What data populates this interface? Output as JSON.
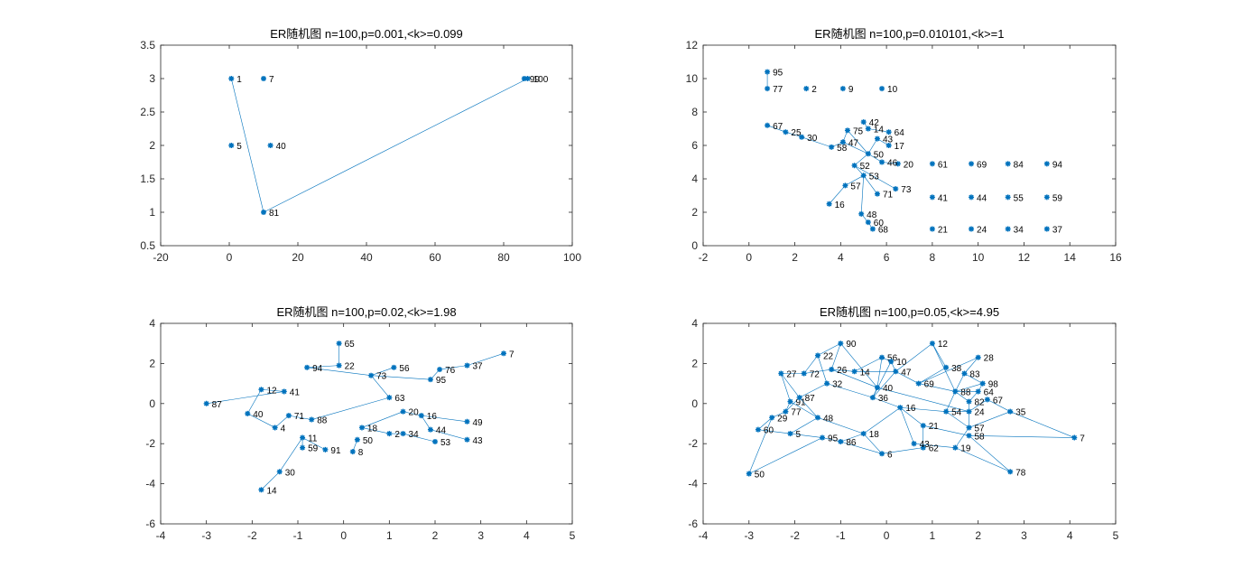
{
  "figure": {
    "background": "#ffffff",
    "marker_color": "#0072BD",
    "axis_color": "#262626"
  },
  "chart_data": [
    {
      "id": "p1",
      "type": "scatter",
      "title": "ER随机图 n=100,p=0.001,<k>=0.099",
      "xlim": [
        -20,
        100
      ],
      "ylim": [
        0.5,
        3.5
      ],
      "xticks": [
        -20,
        0,
        20,
        40,
        60,
        80,
        100
      ],
      "yticks": [
        0.5,
        1,
        1.5,
        2,
        2.5,
        3,
        3.5
      ],
      "points": [
        {
          "label": "81",
          "x": 10,
          "y": 1
        },
        {
          "label": "1",
          "x": 0.6,
          "y": 3
        },
        {
          "label": "7",
          "x": 10,
          "y": 3
        },
        {
          "label": "99",
          "x": 86,
          "y": 3
        },
        {
          "label": "100",
          "x": 87,
          "y": 3
        },
        {
          "label": "5",
          "x": 0.6,
          "y": 2
        },
        {
          "label": "40",
          "x": 12,
          "y": 2
        }
      ],
      "edges": [
        [
          0,
          1
        ],
        [
          0,
          4
        ]
      ]
    },
    {
      "id": "p2",
      "type": "scatter",
      "title": "ER随机图 n=100,p=0.010101,<k>=1",
      "xlim": [
        -2,
        16
      ],
      "ylim": [
        0,
        12
      ],
      "xticks": [
        -2,
        0,
        2,
        4,
        6,
        8,
        10,
        12,
        14,
        16
      ],
      "yticks": [
        0,
        2,
        4,
        6,
        8,
        10,
        12
      ],
      "points": [
        {
          "label": "95",
          "x": 0.8,
          "y": 10.4
        },
        {
          "label": "77",
          "x": 0.8,
          "y": 9.4
        },
        {
          "label": "2",
          "x": 2.5,
          "y": 9.4
        },
        {
          "label": "9",
          "x": 4.1,
          "y": 9.4
        },
        {
          "label": "10",
          "x": 5.8,
          "y": 9.4
        },
        {
          "label": "42",
          "x": 5.0,
          "y": 7.4
        },
        {
          "label": "14",
          "x": 5.2,
          "y": 7.0
        },
        {
          "label": "64",
          "x": 6.1,
          "y": 6.8
        },
        {
          "label": "75",
          "x": 4.3,
          "y": 6.9
        },
        {
          "label": "67",
          "x": 0.8,
          "y": 7.2
        },
        {
          "label": "25",
          "x": 1.6,
          "y": 6.8
        },
        {
          "label": "30",
          "x": 2.3,
          "y": 6.5
        },
        {
          "label": "17",
          "x": 6.1,
          "y": 6.0
        },
        {
          "label": "61",
          "x": 8.0,
          "y": 4.9
        },
        {
          "label": "69",
          "x": 9.7,
          "y": 4.9
        },
        {
          "label": "84",
          "x": 11.3,
          "y": 4.9
        },
        {
          "label": "94",
          "x": 13.0,
          "y": 4.9
        },
        {
          "label": "20",
          "x": 6.5,
          "y": 4.9
        },
        {
          "label": "73",
          "x": 6.4,
          "y": 3.4
        },
        {
          "label": "71",
          "x": 5.6,
          "y": 3.1
        },
        {
          "label": "16",
          "x": 3.5,
          "y": 2.5
        },
        {
          "label": "48",
          "x": 4.9,
          "y": 1.9
        },
        {
          "label": "60",
          "x": 5.2,
          "y": 1.4
        },
        {
          "label": "68",
          "x": 5.4,
          "y": 1.0
        },
        {
          "label": "41",
          "x": 8.0,
          "y": 2.9
        },
        {
          "label": "44",
          "x": 9.7,
          "y": 2.9
        },
        {
          "label": "55",
          "x": 11.3,
          "y": 2.9
        },
        {
          "label": "59",
          "x": 13.0,
          "y": 2.9
        },
        {
          "label": "21",
          "x": 8.0,
          "y": 1.0
        },
        {
          "label": "24",
          "x": 9.7,
          "y": 1.0
        },
        {
          "label": "34",
          "x": 11.3,
          "y": 1.0
        },
        {
          "label": "37",
          "x": 13.0,
          "y": 1.0
        },
        {
          "label": "50",
          "x": 5.2,
          "y": 5.5
        },
        {
          "label": "52",
          "x": 4.6,
          "y": 4.8
        },
        {
          "label": "53",
          "x": 5.0,
          "y": 4.2
        },
        {
          "label": "57",
          "x": 4.2,
          "y": 3.6
        },
        {
          "label": "58",
          "x": 3.6,
          "y": 5.9
        },
        {
          "label": "46",
          "x": 5.8,
          "y": 5.0
        },
        {
          "label": "47",
          "x": 4.1,
          "y": 6.2
        },
        {
          "label": "43",
          "x": 5.6,
          "y": 6.4
        }
      ],
      "edges": [
        [
          0,
          1
        ],
        [
          5,
          6
        ],
        [
          6,
          7
        ],
        [
          9,
          10
        ],
        [
          10,
          11
        ],
        [
          11,
          36
        ],
        [
          36,
          38
        ],
        [
          38,
          32
        ],
        [
          32,
          33
        ],
        [
          33,
          34
        ],
        [
          34,
          35
        ],
        [
          35,
          20
        ],
        [
          34,
          21
        ],
        [
          21,
          22
        ],
        [
          22,
          23
        ],
        [
          32,
          37
        ],
        [
          37,
          17
        ],
        [
          33,
          18
        ],
        [
          34,
          19
        ],
        [
          8,
          38
        ],
        [
          8,
          32
        ],
        [
          32,
          39
        ],
        [
          39,
          12
        ]
      ]
    },
    {
      "id": "p3",
      "type": "scatter",
      "title": "ER随机图 n=100,p=0.02,<k>=1.98",
      "xlim": [
        -4,
        5
      ],
      "ylim": [
        -6,
        4
      ],
      "xticks": [
        -4,
        -3,
        -2,
        -1,
        0,
        1,
        2,
        3,
        4,
        5
      ],
      "yticks": [
        -6,
        -4,
        -2,
        0,
        2,
        4
      ],
      "points": [
        {
          "label": "65",
          "x": -0.1,
          "y": 3.0
        },
        {
          "label": "7",
          "x": 3.5,
          "y": 2.5
        },
        {
          "label": "37",
          "x": 2.7,
          "y": 1.9
        },
        {
          "label": "76",
          "x": 2.1,
          "y": 1.7
        },
        {
          "label": "95",
          "x": 1.9,
          "y": 1.2
        },
        {
          "label": "56",
          "x": 1.1,
          "y": 1.8
        },
        {
          "label": "87",
          "x": -3.0,
          "y": 0.0
        },
        {
          "label": "40",
          "x": -2.1,
          "y": -0.5
        },
        {
          "label": "4",
          "x": -1.5,
          "y": -1.2
        },
        {
          "label": "49",
          "x": 2.7,
          "y": -0.9
        },
        {
          "label": "43",
          "x": 2.7,
          "y": -1.8
        },
        {
          "label": "53",
          "x": 2.0,
          "y": -1.9
        },
        {
          "label": "44",
          "x": 1.9,
          "y": -1.3
        },
        {
          "label": "16",
          "x": 1.7,
          "y": -0.6
        },
        {
          "label": "34",
          "x": 1.3,
          "y": -1.5
        },
        {
          "label": "2",
          "x": 1.0,
          "y": -1.5
        },
        {
          "label": "18",
          "x": 0.4,
          "y": -1.2
        },
        {
          "label": "50",
          "x": 0.3,
          "y": -1.8
        },
        {
          "label": "8",
          "x": 0.2,
          "y": -2.4
        },
        {
          "label": "91",
          "x": -0.4,
          "y": -2.3
        },
        {
          "label": "59",
          "x": -0.9,
          "y": -2.2
        },
        {
          "label": "11",
          "x": -0.9,
          "y": -1.7
        },
        {
          "label": "30",
          "x": -1.4,
          "y": -3.4
        },
        {
          "label": "14",
          "x": -1.8,
          "y": -4.3
        },
        {
          "label": "71",
          "x": -1.2,
          "y": -0.6
        },
        {
          "label": "41",
          "x": -1.3,
          "y": 0.6
        },
        {
          "label": "12",
          "x": -1.8,
          "y": 0.7
        },
        {
          "label": "22",
          "x": -0.1,
          "y": 1.9
        },
        {
          "label": "94",
          "x": -0.8,
          "y": 1.8
        },
        {
          "label": "73",
          "x": 0.6,
          "y": 1.4
        },
        {
          "label": "20",
          "x": 1.3,
          "y": -0.4
        },
        {
          "label": "88",
          "x": -0.7,
          "y": -0.8
        },
        {
          "label": "63",
          "x": 1.0,
          "y": 0.3
        }
      ],
      "edges": [
        [
          0,
          27
        ],
        [
          1,
          2
        ],
        [
          2,
          3
        ],
        [
          3,
          4
        ],
        [
          4,
          29
        ],
        [
          6,
          25
        ],
        [
          7,
          26
        ],
        [
          8,
          24
        ],
        [
          9,
          13
        ],
        [
          10,
          12
        ],
        [
          11,
          14
        ],
        [
          14,
          15
        ],
        [
          15,
          16
        ],
        [
          17,
          18
        ],
        [
          19,
          21
        ],
        [
          20,
          21
        ],
        [
          22,
          23
        ],
        [
          22,
          21
        ],
        [
          24,
          31
        ],
        [
          25,
          26
        ],
        [
          27,
          28
        ],
        [
          28,
          29
        ],
        [
          29,
          32
        ],
        [
          30,
          13
        ],
        [
          5,
          29
        ],
        [
          31,
          32
        ],
        [
          16,
          30
        ],
        [
          12,
          13
        ],
        [
          8,
          7
        ]
      ]
    },
    {
      "id": "p4",
      "type": "scatter",
      "title": "ER随机图 n=100,p=0.05,<k>=4.95",
      "xlim": [
        -4,
        5
      ],
      "ylim": [
        -6,
        4
      ],
      "xticks": [
        -4,
        -3,
        -2,
        -1,
        0,
        1,
        2,
        3,
        4,
        5
      ],
      "yticks": [
        -6,
        -4,
        -2,
        0,
        2,
        4
      ],
      "points": [
        {
          "label": "90",
          "x": -1.0,
          "y": 3.0
        },
        {
          "label": "12",
          "x": 1.0,
          "y": 3.0
        },
        {
          "label": "28",
          "x": 2.0,
          "y": 2.3
        },
        {
          "label": "22",
          "x": -1.5,
          "y": 2.4
        },
        {
          "label": "56",
          "x": -0.1,
          "y": 2.3
        },
        {
          "label": "10",
          "x": 0.1,
          "y": 2.1
        },
        {
          "label": "27",
          "x": -2.3,
          "y": 1.5
        },
        {
          "label": "72",
          "x": -1.8,
          "y": 1.5
        },
        {
          "label": "38",
          "x": 1.3,
          "y": 1.8
        },
        {
          "label": "83",
          "x": 1.7,
          "y": 1.5
        },
        {
          "label": "98",
          "x": 2.1,
          "y": 1.0
        },
        {
          "label": "64",
          "x": 2.0,
          "y": 0.6
        },
        {
          "label": "67",
          "x": 2.2,
          "y": 0.2
        },
        {
          "label": "35",
          "x": 2.7,
          "y": -0.4
        },
        {
          "label": "7",
          "x": 4.1,
          "y": -1.7
        },
        {
          "label": "78",
          "x": 2.7,
          "y": -3.4
        },
        {
          "label": "19",
          "x": 1.5,
          "y": -2.2
        },
        {
          "label": "58",
          "x": 1.8,
          "y": -1.6
        },
        {
          "label": "62",
          "x": 0.8,
          "y": -2.2
        },
        {
          "label": "6",
          "x": -0.1,
          "y": -2.5
        },
        {
          "label": "86",
          "x": -1.0,
          "y": -1.9
        },
        {
          "label": "95",
          "x": -1.4,
          "y": -1.7
        },
        {
          "label": "5",
          "x": -2.1,
          "y": -1.5
        },
        {
          "label": "60",
          "x": -2.8,
          "y": -1.3
        },
        {
          "label": "29",
          "x": -2.5,
          "y": -0.7
        },
        {
          "label": "77",
          "x": -2.2,
          "y": -0.4
        },
        {
          "label": "91",
          "x": -2.1,
          "y": 0.1
        },
        {
          "label": "50",
          "x": -3.0,
          "y": -3.5
        },
        {
          "label": "26",
          "x": -1.2,
          "y": 1.7
        },
        {
          "label": "14",
          "x": -0.7,
          "y": 1.6
        },
        {
          "label": "47",
          "x": 0.2,
          "y": 1.6
        },
        {
          "label": "69",
          "x": 0.7,
          "y": 1.0
        },
        {
          "label": "32",
          "x": -1.3,
          "y": 1.0
        },
        {
          "label": "40",
          "x": -0.2,
          "y": 0.8
        },
        {
          "label": "88",
          "x": 1.5,
          "y": 0.6
        },
        {
          "label": "82",
          "x": 1.8,
          "y": 0.1
        },
        {
          "label": "24",
          "x": 1.8,
          "y": -0.4
        },
        {
          "label": "57",
          "x": 1.8,
          "y": -1.2
        },
        {
          "label": "21",
          "x": 0.8,
          "y": -1.1
        },
        {
          "label": "43",
          "x": 0.6,
          "y": -2.0
        },
        {
          "label": "18",
          "x": -0.5,
          "y": -1.5
        },
        {
          "label": "48",
          "x": -1.5,
          "y": -0.7
        },
        {
          "label": "87",
          "x": -1.9,
          "y": 0.3
        },
        {
          "label": "36",
          "x": -0.3,
          "y": 0.3
        },
        {
          "label": "16",
          "x": 0.3,
          "y": -0.2
        },
        {
          "label": "54",
          "x": 1.3,
          "y": -0.4
        }
      ],
      "edges": [
        [
          0,
          3
        ],
        [
          0,
          28
        ],
        [
          0,
          33
        ],
        [
          1,
          8
        ],
        [
          1,
          30
        ],
        [
          1,
          34
        ],
        [
          2,
          9
        ],
        [
          2,
          31
        ],
        [
          3,
          7
        ],
        [
          3,
          32
        ],
        [
          4,
          29
        ],
        [
          4,
          33
        ],
        [
          5,
          30
        ],
        [
          5,
          43
        ],
        [
          6,
          7
        ],
        [
          6,
          26
        ],
        [
          6,
          42
        ],
        [
          7,
          28
        ],
        [
          8,
          31
        ],
        [
          9,
          10
        ],
        [
          10,
          11
        ],
        [
          11,
          35
        ],
        [
          12,
          13
        ],
        [
          12,
          36
        ],
        [
          13,
          14
        ],
        [
          13,
          37
        ],
        [
          14,
          17
        ],
        [
          15,
          16
        ],
        [
          15,
          17
        ],
        [
          16,
          39
        ],
        [
          17,
          38
        ],
        [
          18,
          19
        ],
        [
          18,
          38
        ],
        [
          19,
          20
        ],
        [
          19,
          40
        ],
        [
          20,
          21
        ],
        [
          21,
          22
        ],
        [
          22,
          23
        ],
        [
          23,
          24
        ],
        [
          24,
          25
        ],
        [
          25,
          26
        ],
        [
          26,
          41
        ],
        [
          27,
          24
        ],
        [
          27,
          21
        ],
        [
          28,
          29
        ],
        [
          29,
          30
        ],
        [
          30,
          31
        ],
        [
          31,
          34
        ],
        [
          32,
          42
        ],
        [
          32,
          43
        ],
        [
          33,
          43
        ],
        [
          34,
          35
        ],
        [
          35,
          36
        ],
        [
          36,
          45
        ],
        [
          37,
          45
        ],
        [
          38,
          44
        ],
        [
          39,
          44
        ],
        [
          40,
          41
        ],
        [
          40,
          44
        ],
        [
          41,
          42
        ],
        [
          43,
          44
        ],
        [
          44,
          45
        ],
        [
          11,
          34
        ],
        [
          9,
          34
        ],
        [
          42,
          25
        ],
        [
          28,
          33
        ],
        [
          4,
          5
        ],
        [
          30,
          43
        ],
        [
          20,
          40
        ],
        [
          22,
          41
        ],
        [
          37,
          16
        ],
        [
          36,
          37
        ],
        [
          45,
          34
        ],
        [
          33,
          36
        ],
        [
          10,
          34
        ]
      ]
    }
  ]
}
